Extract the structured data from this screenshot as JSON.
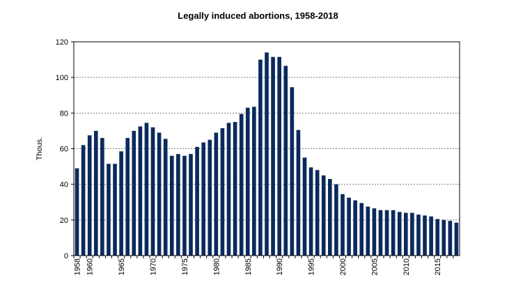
{
  "chart_data": {
    "type": "bar",
    "title": "Legally induced abortions, 1958-2018",
    "ylabel": "Thous.",
    "xlabel": "",
    "ylim": [
      0,
      120
    ],
    "yticks": [
      0,
      20,
      40,
      60,
      80,
      100,
      120
    ],
    "grid": true,
    "bar_color": "#0b2a5c",
    "x_tick_labels": [
      "1958",
      "1960",
      "1965",
      "1970",
      "1975",
      "1980",
      "1985",
      "1990",
      "1995",
      "2000",
      "2005",
      "2010",
      "2015"
    ],
    "categories": [
      1958,
      1959,
      1960,
      1961,
      1962,
      1963,
      1964,
      1965,
      1966,
      1967,
      1968,
      1969,
      1970,
      1971,
      1972,
      1973,
      1974,
      1975,
      1976,
      1977,
      1978,
      1979,
      1980,
      1981,
      1982,
      1983,
      1984,
      1985,
      1986,
      1987,
      1988,
      1989,
      1990,
      1991,
      1992,
      1993,
      1994,
      1995,
      1996,
      1997,
      1998,
      1999,
      2000,
      2001,
      2002,
      2003,
      2004,
      2005,
      2006,
      2007,
      2008,
      2009,
      2010,
      2011,
      2012,
      2013,
      2014,
      2015,
      2016,
      2017,
      2018
    ],
    "values": [
      49,
      62,
      67.5,
      70,
      66,
      51.5,
      51.5,
      58.5,
      66,
      70,
      72.5,
      74.5,
      72,
      69,
      65.5,
      56,
      57,
      56,
      57,
      61,
      63.5,
      65,
      69,
      71.5,
      74.5,
      75,
      79.5,
      83,
      83.5,
      110,
      114,
      111.5,
      111.5,
      106.5,
      94.5,
      70.5,
      55,
      49.5,
      48,
      45,
      43,
      40,
      34.5,
      32.5,
      31,
      29.5,
      27.5,
      26.5,
      25.5,
      25.5,
      25.5,
      24.5,
      24,
      24,
      23,
      22.5,
      22,
      20.5,
      20,
      19.5,
      18.5
    ]
  }
}
